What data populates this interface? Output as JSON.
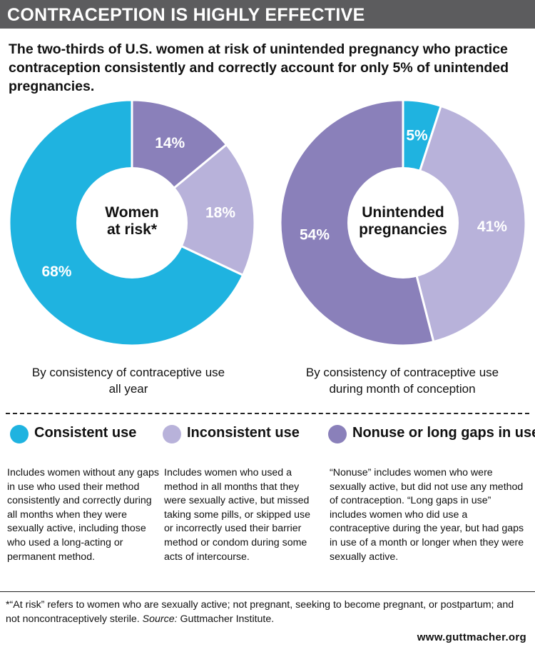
{
  "header": {
    "title": "CONTRACEPTION IS HIGHLY EFFECTIVE",
    "subtitle": "The two-thirds of U.S. women at risk of unintended pregnancy who practice contraception consistently and correctly account for only 5% of unintended pregnancies."
  },
  "colors": {
    "consistent": "#1fb3e0",
    "inconsistent": "#b8b2da",
    "nonuse": "#8a80ba",
    "title_bar": "#5c5c5e"
  },
  "chart_data": [
    {
      "type": "pie",
      "center_label": [
        "Women",
        "at risk*"
      ],
      "caption": [
        "By consistency of contraceptive use",
        "all year"
      ],
      "categories": [
        "Consistent use",
        "Inconsistent use",
        "Nonuse or long gaps in use"
      ],
      "values": [
        68,
        18,
        14
      ],
      "data_labels": [
        "68%",
        "18%",
        "14%"
      ]
    },
    {
      "type": "pie",
      "center_label": [
        "Unintended",
        "pregnancies"
      ],
      "caption": [
        "By consistency of contraceptive use",
        "during month of conception"
      ],
      "categories": [
        "Consistent use",
        "Inconsistent use",
        "Nonuse or long gaps in use"
      ],
      "values": [
        5,
        41,
        54
      ],
      "data_labels": [
        "5%",
        "41%",
        "54%"
      ]
    }
  ],
  "legend": [
    {
      "label": "Consistent use",
      "color_key": "consistent"
    },
    {
      "label": "Inconsistent use",
      "color_key": "inconsistent"
    },
    {
      "label": "Nonuse or long gaps in use",
      "color_key": "nonuse"
    }
  ],
  "descriptions": [
    "Includes women without any gaps in use who used their method consistently and correctly during all months when they were sexually active, including those who used a long-acting or permanent method.",
    "Includes women who used a method in all months that they were sexually active, but missed taking some pills, or skipped use or incorrectly used their barrier method or condom during some acts of intercourse.",
    "“Nonuse” includes women who were sexually active, but did not use any method of contraception. “Long gaps in use” includes women who did use a contraceptive during the year, but had gaps in use of a month or longer when they were sexually active."
  ],
  "footnote": {
    "text": "*“At risk” refers to women who are sexually active; not pregnant, seeking to become pregnant, or postpartum; and not noncontraceptively sterile.",
    "source_label": "Source:",
    "source_text": "Guttmacher Institute."
  },
  "footer_url": "www.guttmacher.org"
}
